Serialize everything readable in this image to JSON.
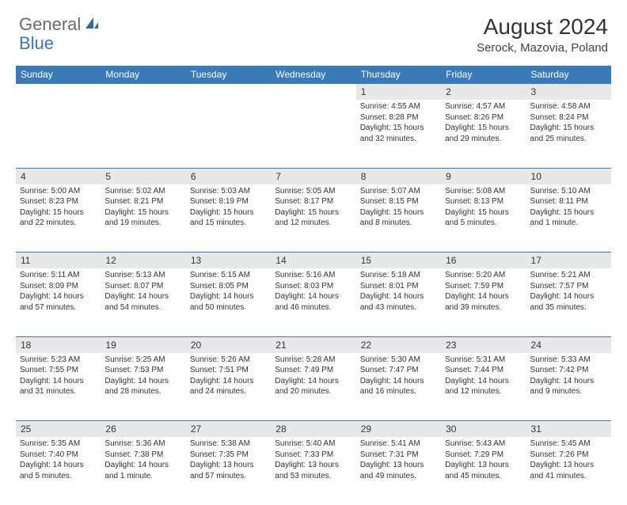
{
  "logo": {
    "general": "General",
    "blue": "Blue"
  },
  "title": "August 2024",
  "location": "Serock, Mazovia, Poland",
  "colors": {
    "header_bg": "#3a7ab8",
    "daynum_bg": "#e8e8e8",
    "border": "#3a7ab8",
    "text": "#333333"
  },
  "weekdays": [
    "Sunday",
    "Monday",
    "Tuesday",
    "Wednesday",
    "Thursday",
    "Friday",
    "Saturday"
  ],
  "weeks": [
    {
      "nums": [
        "",
        "",
        "",
        "",
        "1",
        "2",
        "3"
      ],
      "cells": [
        null,
        null,
        null,
        null,
        {
          "sr": "Sunrise: 4:55 AM",
          "ss": "Sunset: 8:28 PM",
          "d1": "Daylight: 15 hours",
          "d2": "and 32 minutes."
        },
        {
          "sr": "Sunrise: 4:57 AM",
          "ss": "Sunset: 8:26 PM",
          "d1": "Daylight: 15 hours",
          "d2": "and 29 minutes."
        },
        {
          "sr": "Sunrise: 4:58 AM",
          "ss": "Sunset: 8:24 PM",
          "d1": "Daylight: 15 hours",
          "d2": "and 25 minutes."
        }
      ]
    },
    {
      "nums": [
        "4",
        "5",
        "6",
        "7",
        "8",
        "9",
        "10"
      ],
      "cells": [
        {
          "sr": "Sunrise: 5:00 AM",
          "ss": "Sunset: 8:23 PM",
          "d1": "Daylight: 15 hours",
          "d2": "and 22 minutes."
        },
        {
          "sr": "Sunrise: 5:02 AM",
          "ss": "Sunset: 8:21 PM",
          "d1": "Daylight: 15 hours",
          "d2": "and 19 minutes."
        },
        {
          "sr": "Sunrise: 5:03 AM",
          "ss": "Sunset: 8:19 PM",
          "d1": "Daylight: 15 hours",
          "d2": "and 15 minutes."
        },
        {
          "sr": "Sunrise: 5:05 AM",
          "ss": "Sunset: 8:17 PM",
          "d1": "Daylight: 15 hours",
          "d2": "and 12 minutes."
        },
        {
          "sr": "Sunrise: 5:07 AM",
          "ss": "Sunset: 8:15 PM",
          "d1": "Daylight: 15 hours",
          "d2": "and 8 minutes."
        },
        {
          "sr": "Sunrise: 5:08 AM",
          "ss": "Sunset: 8:13 PM",
          "d1": "Daylight: 15 hours",
          "d2": "and 5 minutes."
        },
        {
          "sr": "Sunrise: 5:10 AM",
          "ss": "Sunset: 8:11 PM",
          "d1": "Daylight: 15 hours",
          "d2": "and 1 minute."
        }
      ]
    },
    {
      "nums": [
        "11",
        "12",
        "13",
        "14",
        "15",
        "16",
        "17"
      ],
      "cells": [
        {
          "sr": "Sunrise: 5:11 AM",
          "ss": "Sunset: 8:09 PM",
          "d1": "Daylight: 14 hours",
          "d2": "and 57 minutes."
        },
        {
          "sr": "Sunrise: 5:13 AM",
          "ss": "Sunset: 8:07 PM",
          "d1": "Daylight: 14 hours",
          "d2": "and 54 minutes."
        },
        {
          "sr": "Sunrise: 5:15 AM",
          "ss": "Sunset: 8:05 PM",
          "d1": "Daylight: 14 hours",
          "d2": "and 50 minutes."
        },
        {
          "sr": "Sunrise: 5:16 AM",
          "ss": "Sunset: 8:03 PM",
          "d1": "Daylight: 14 hours",
          "d2": "and 46 minutes."
        },
        {
          "sr": "Sunrise: 5:18 AM",
          "ss": "Sunset: 8:01 PM",
          "d1": "Daylight: 14 hours",
          "d2": "and 43 minutes."
        },
        {
          "sr": "Sunrise: 5:20 AM",
          "ss": "Sunset: 7:59 PM",
          "d1": "Daylight: 14 hours",
          "d2": "and 39 minutes."
        },
        {
          "sr": "Sunrise: 5:21 AM",
          "ss": "Sunset: 7:57 PM",
          "d1": "Daylight: 14 hours",
          "d2": "and 35 minutes."
        }
      ]
    },
    {
      "nums": [
        "18",
        "19",
        "20",
        "21",
        "22",
        "23",
        "24"
      ],
      "cells": [
        {
          "sr": "Sunrise: 5:23 AM",
          "ss": "Sunset: 7:55 PM",
          "d1": "Daylight: 14 hours",
          "d2": "and 31 minutes."
        },
        {
          "sr": "Sunrise: 5:25 AM",
          "ss": "Sunset: 7:53 PM",
          "d1": "Daylight: 14 hours",
          "d2": "and 28 minutes."
        },
        {
          "sr": "Sunrise: 5:26 AM",
          "ss": "Sunset: 7:51 PM",
          "d1": "Daylight: 14 hours",
          "d2": "and 24 minutes."
        },
        {
          "sr": "Sunrise: 5:28 AM",
          "ss": "Sunset: 7:49 PM",
          "d1": "Daylight: 14 hours",
          "d2": "and 20 minutes."
        },
        {
          "sr": "Sunrise: 5:30 AM",
          "ss": "Sunset: 7:47 PM",
          "d1": "Daylight: 14 hours",
          "d2": "and 16 minutes."
        },
        {
          "sr": "Sunrise: 5:31 AM",
          "ss": "Sunset: 7:44 PM",
          "d1": "Daylight: 14 hours",
          "d2": "and 12 minutes."
        },
        {
          "sr": "Sunrise: 5:33 AM",
          "ss": "Sunset: 7:42 PM",
          "d1": "Daylight: 14 hours",
          "d2": "and 9 minutes."
        }
      ]
    },
    {
      "nums": [
        "25",
        "26",
        "27",
        "28",
        "29",
        "30",
        "31"
      ],
      "cells": [
        {
          "sr": "Sunrise: 5:35 AM",
          "ss": "Sunset: 7:40 PM",
          "d1": "Daylight: 14 hours",
          "d2": "and 5 minutes."
        },
        {
          "sr": "Sunrise: 5:36 AM",
          "ss": "Sunset: 7:38 PM",
          "d1": "Daylight: 14 hours",
          "d2": "and 1 minute."
        },
        {
          "sr": "Sunrise: 5:38 AM",
          "ss": "Sunset: 7:35 PM",
          "d1": "Daylight: 13 hours",
          "d2": "and 57 minutes."
        },
        {
          "sr": "Sunrise: 5:40 AM",
          "ss": "Sunset: 7:33 PM",
          "d1": "Daylight: 13 hours",
          "d2": "and 53 minutes."
        },
        {
          "sr": "Sunrise: 5:41 AM",
          "ss": "Sunset: 7:31 PM",
          "d1": "Daylight: 13 hours",
          "d2": "and 49 minutes."
        },
        {
          "sr": "Sunrise: 5:43 AM",
          "ss": "Sunset: 7:29 PM",
          "d1": "Daylight: 13 hours",
          "d2": "and 45 minutes."
        },
        {
          "sr": "Sunrise: 5:45 AM",
          "ss": "Sunset: 7:26 PM",
          "d1": "Daylight: 13 hours",
          "d2": "and 41 minutes."
        }
      ]
    }
  ]
}
